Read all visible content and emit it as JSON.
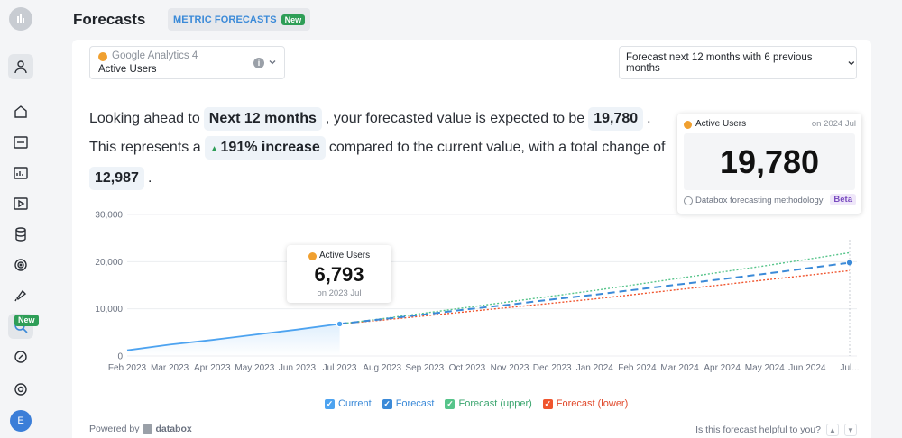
{
  "header": {
    "title": "Forecasts",
    "tab_label": "METRIC FORECASTS",
    "tab_badge": "New"
  },
  "sidebar": {
    "items": [
      "logo-icon",
      "account-icon",
      "home-icon",
      "metrics-icon",
      "dashboards-icon",
      "reports-icon",
      "datasets-icon",
      "goals-icon",
      "alerts-icon",
      "forecasts-icon",
      "benchmarks-icon",
      "help-icon"
    ],
    "new_badge": "New",
    "avatar": "E"
  },
  "metric_select": {
    "source": "Google Analytics 4",
    "metric": "Active Users"
  },
  "period_select": {
    "label": "Forecast next 12 months with 6 previous months"
  },
  "summary": {
    "s1_a": "Looking ahead to",
    "s1_period": "Next 12 months",
    "s1_b": ", your forecasted value is expected to be",
    "s1_value": "19,780",
    "s1_c": ".",
    "s2_a": "This represents a",
    "s2_change": "191% increase",
    "s2_b": "compared to the current value, with a total change of",
    "s3_total": "12,987",
    "s3_c": "."
  },
  "forecast_card": {
    "metric": "Active Users",
    "date": "on 2024 Jul",
    "value": "19,780",
    "methodology": "Databox forecasting methodology",
    "badge": "Beta"
  },
  "hover_tip": {
    "metric": "Active Users",
    "value": "6,793",
    "date": "on 2023 Jul"
  },
  "legend": {
    "current": "Current",
    "forecast": "Forecast",
    "upper": "Forecast (upper)",
    "lower": "Forecast (lower)"
  },
  "footer": {
    "powered": "Powered by",
    "brand": "databox",
    "feedback": "Is this forecast helpful to you?"
  },
  "colors": {
    "current": "#4da3f0",
    "forecast": "#3b8ad8",
    "upper": "#56c48a",
    "lower": "#f0552e",
    "accent": "#3b8ad8"
  },
  "chart_data": {
    "type": "line",
    "categories": [
      "Feb 2023",
      "Mar 2023",
      "Apr 2023",
      "May 2023",
      "Jun 2023",
      "Jul 2023",
      "Aug 2023",
      "Sep 2023",
      "Oct 2023",
      "Nov 2023",
      "Dec 2023",
      "Jan 2024",
      "Feb 2024",
      "Mar 2024",
      "Apr 2024",
      "May 2024",
      "Jun 2024",
      "Jul..."
    ],
    "ylim": [
      0,
      30000
    ],
    "yticks": [
      0,
      10000,
      20000,
      30000
    ],
    "ytick_labels": [
      "0",
      "10,000",
      "20,000",
      "30,000"
    ],
    "grid": true,
    "series": [
      {
        "name": "Current",
        "values": [
          1200,
          2400,
          3400,
          4500,
          5600,
          6793,
          null,
          null,
          null,
          null,
          null,
          null,
          null,
          null,
          null,
          null,
          null,
          null
        ]
      },
      {
        "name": "Forecast",
        "values": [
          null,
          null,
          null,
          null,
          null,
          6793,
          7800,
          8800,
          9900,
          10900,
          12000,
          13000,
          14100,
          15200,
          16300,
          17400,
          18600,
          19780
        ]
      },
      {
        "name": "Forecast (upper)",
        "values": [
          null,
          null,
          null,
          null,
          null,
          6793,
          7900,
          9100,
          10300,
          11500,
          12700,
          13900,
          15200,
          16500,
          17800,
          19100,
          20500,
          21900
        ]
      },
      {
        "name": "Forecast (lower)",
        "values": [
          null,
          null,
          null,
          null,
          null,
          6793,
          7600,
          8500,
          9400,
          10300,
          11200,
          12100,
          13100,
          14100,
          15100,
          16100,
          17100,
          18100
        ]
      }
    ]
  }
}
